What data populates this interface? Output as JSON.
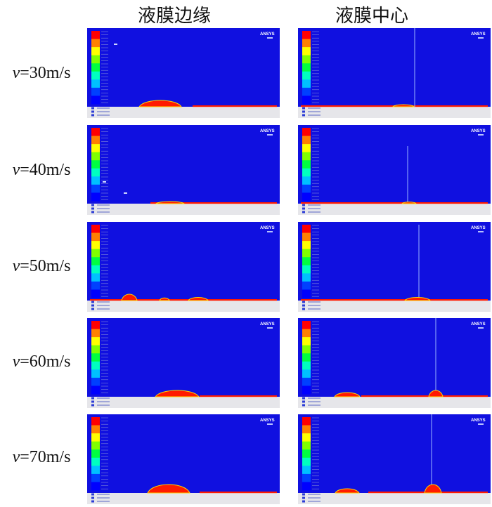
{
  "headers": {
    "edge": "液膜边缘",
    "center": "液膜中心"
  },
  "rows": [
    {
      "var": "v",
      "rest": "=30m/s"
    },
    {
      "var": "v",
      "rest": "=40m/s"
    },
    {
      "var": "v",
      "rest": "=50m/s"
    },
    {
      "var": "v",
      "rest": "=60m/s"
    },
    {
      "var": "v",
      "rest": "=70m/s"
    }
  ],
  "panel_logo": "ANSYS",
  "colors": {
    "background_phase": "#1010e0",
    "liquid_phase": "#ff1a00",
    "wall": "#e6e6ea",
    "colorbar": [
      "#ff0000",
      "#ff8000",
      "#ffff00",
      "#80ff00",
      "#00ff40",
      "#00ffc0",
      "#00c0ff",
      "#0040ff",
      "#0000ff"
    ]
  }
}
